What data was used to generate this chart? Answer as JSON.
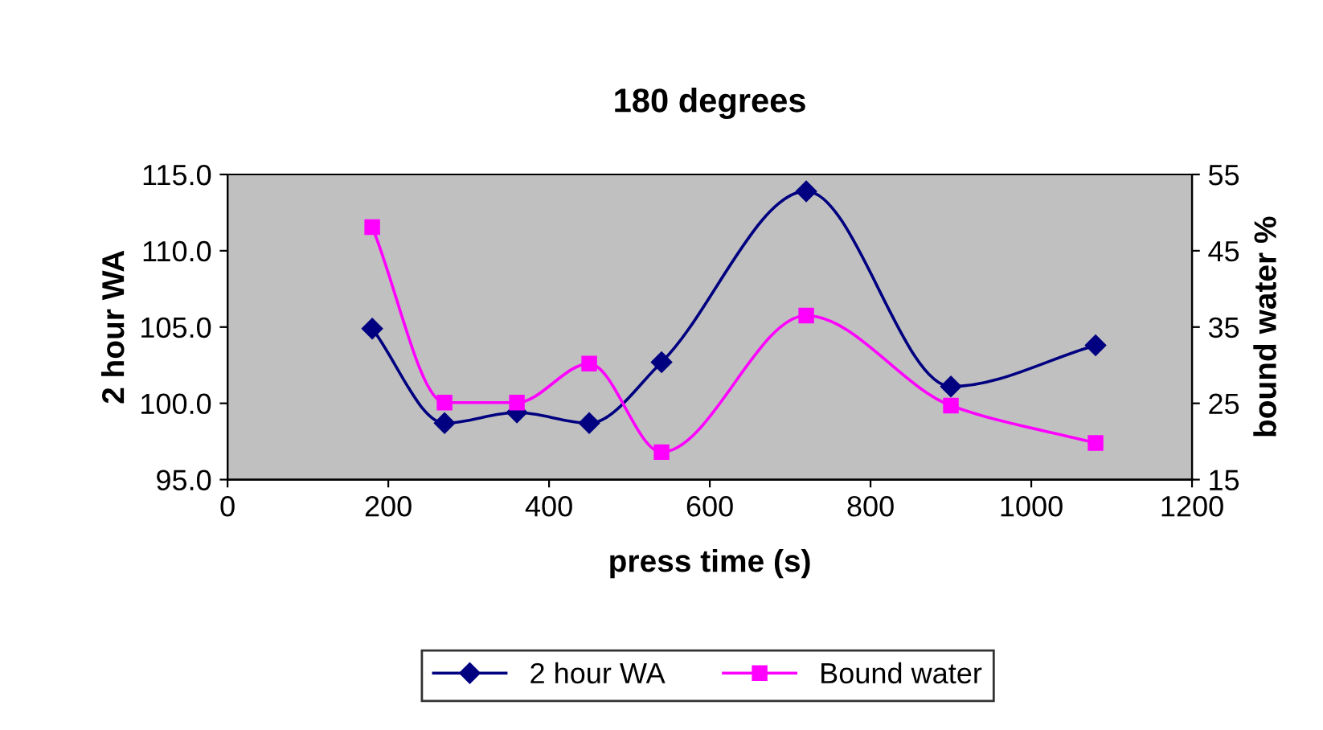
{
  "chart_data": {
    "type": "line",
    "title": "180 degrees",
    "xlabel": "press time (s)",
    "ylabel": "2 hour WA",
    "y2label": "bound water %",
    "x": [
      180,
      270,
      360,
      450,
      540,
      720,
      900,
      1080
    ],
    "series": [
      {
        "name": "2 hour WA",
        "color": "#000080",
        "marker": "diamond",
        "values": [
          104.9,
          98.7,
          99.4,
          98.7,
          102.7,
          113.9,
          101.1,
          103.8
        ]
      },
      {
        "name": "Bound water",
        "color": "#ff00ff",
        "marker": "square",
        "axis": "y2",
        "values": [
          48.1,
          25.1,
          25.1,
          30.2,
          18.6,
          36.5,
          24.7,
          19.8
        ]
      }
    ],
    "xlim": [
      0,
      1200
    ],
    "xticks": [
      0,
      200,
      400,
      600,
      800,
      1000,
      1200
    ],
    "ylim": [
      95,
      115
    ],
    "yticks": [
      {
        "value": 95,
        "label": "95.0"
      },
      {
        "value": 100,
        "label": "100.0"
      },
      {
        "value": 105,
        "label": "105.0"
      },
      {
        "value": 110,
        "label": "110.0"
      },
      {
        "value": 115,
        "label": "115.0"
      }
    ],
    "y2lim": [
      15,
      55
    ],
    "y2ticks": [
      15,
      25,
      35,
      45,
      55
    ],
    "grid": false,
    "legend": "bottom"
  }
}
